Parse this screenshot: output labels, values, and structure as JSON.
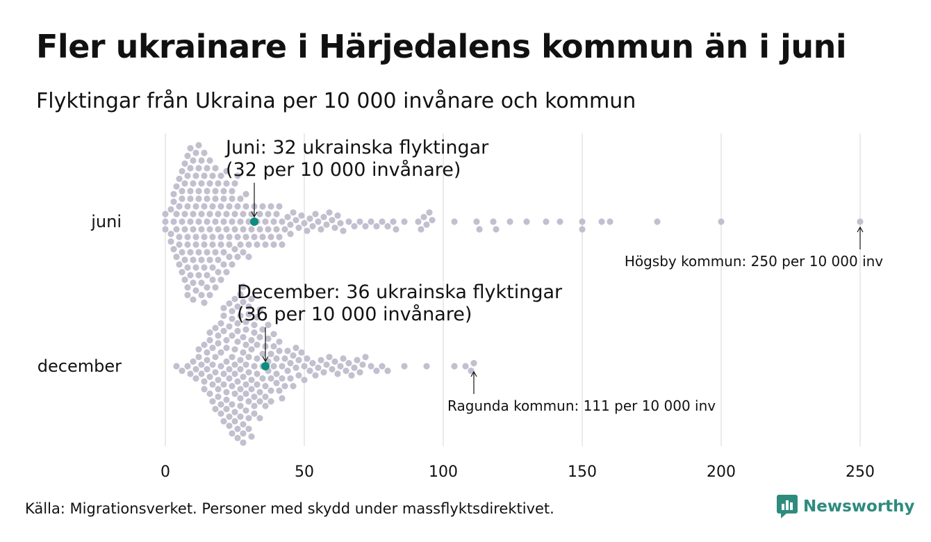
{
  "title": "Fler ukrainare i Härjedalens kommun än i juni",
  "subtitle": "Flyktingar från Ukraina per 10 000 invånare och kommun",
  "source": "Källa: Migrationsverket. Personer med skydd under massflyktsdirektivet.",
  "logo_text": "Newsworthy",
  "colors": {
    "dot": "#c2bfcf",
    "highlight": "#0e8c80",
    "grid": "#d4d4d4",
    "text": "#111111",
    "logo": "#2e8b7e"
  },
  "chart_data": {
    "type": "scatter",
    "variant": "beeswarm",
    "xlim": [
      0,
      250
    ],
    "xticks": [
      0,
      50,
      100,
      150,
      200,
      250
    ],
    "xtick_labels": [
      "0",
      "50",
      "100",
      "150",
      "200",
      "250"
    ],
    "grid": "vertical",
    "series": [
      {
        "name": "juni",
        "highlight": {
          "value": 32,
          "label_line1": "Juni: 32 ukrainska flyktingar",
          "label_line2": "(32 per 10 000 invånare)"
        },
        "outlier": {
          "value": 250,
          "label": "Högsby kommun: 250 per 10 000 inv"
        },
        "values": [
          0,
          0,
          0,
          2,
          2,
          2,
          3,
          3,
          3,
          3,
          4,
          4,
          4,
          4,
          5,
          5,
          5,
          5,
          5,
          6,
          6,
          6,
          6,
          6,
          6,
          7,
          7,
          7,
          7,
          7,
          7,
          8,
          8,
          8,
          8,
          8,
          8,
          8,
          8,
          9,
          9,
          9,
          9,
          9,
          9,
          9,
          10,
          10,
          10,
          10,
          10,
          10,
          10,
          11,
          11,
          11,
          11,
          11,
          11,
          11,
          12,
          12,
          12,
          12,
          12,
          12,
          12,
          13,
          13,
          13,
          13,
          13,
          13,
          13,
          14,
          14,
          14,
          14,
          14,
          14,
          14,
          15,
          15,
          15,
          15,
          15,
          15,
          15,
          16,
          16,
          16,
          16,
          16,
          16,
          17,
          17,
          17,
          17,
          17,
          17,
          18,
          18,
          18,
          18,
          18,
          18,
          19,
          19,
          19,
          19,
          19,
          20,
          20,
          20,
          20,
          20,
          21,
          21,
          21,
          21,
          21,
          22,
          22,
          22,
          22,
          22,
          23,
          23,
          23,
          23,
          24,
          24,
          24,
          24,
          25,
          25,
          25,
          25,
          26,
          26,
          26,
          26,
          27,
          27,
          27,
          28,
          28,
          28,
          29,
          29,
          29,
          30,
          30,
          30,
          31,
          31,
          32,
          32,
          33,
          33,
          34,
          34,
          35,
          35,
          36,
          36,
          37,
          37,
          38,
          38,
          39,
          39,
          40,
          40,
          41,
          41,
          42,
          42,
          43,
          44,
          45,
          45,
          46,
          47,
          48,
          49,
          50,
          51,
          52,
          53,
          54,
          55,
          56,
          57,
          58,
          59,
          60,
          61,
          62,
          63,
          64,
          66,
          68,
          70,
          72,
          74,
          76,
          78,
          80,
          82,
          83,
          86,
          91,
          92,
          93,
          94,
          95,
          96,
          104,
          112,
          113,
          118,
          119,
          124,
          130,
          137,
          142,
          150,
          150,
          157,
          160,
          177,
          200,
          250
        ]
      },
      {
        "name": "december",
        "highlight": {
          "value": 36,
          "label_line1": "December: 36 ukrainska flyktingar",
          "label_line2": "(36 per 10 000 invånare)"
        },
        "outlier": {
          "value": 111,
          "label": "Ragunda kommun: 111 per 10 000 inv"
        },
        "values": [
          4,
          6,
          8,
          9,
          10,
          11,
          11,
          12,
          12,
          13,
          13,
          14,
          14,
          14,
          15,
          15,
          15,
          16,
          16,
          16,
          16,
          17,
          17,
          17,
          17,
          18,
          18,
          18,
          18,
          19,
          19,
          19,
          19,
          19,
          20,
          20,
          20,
          20,
          20,
          21,
          21,
          21,
          21,
          21,
          21,
          22,
          22,
          22,
          22,
          22,
          22,
          23,
          23,
          23,
          23,
          23,
          23,
          24,
          24,
          24,
          24,
          24,
          24,
          24,
          25,
          25,
          25,
          25,
          25,
          25,
          25,
          26,
          26,
          26,
          26,
          26,
          26,
          26,
          27,
          27,
          27,
          27,
          27,
          27,
          27,
          27,
          28,
          28,
          28,
          28,
          28,
          28,
          28,
          28,
          29,
          29,
          29,
          29,
          29,
          29,
          29,
          30,
          30,
          30,
          30,
          30,
          30,
          30,
          31,
          31,
          31,
          31,
          31,
          31,
          32,
          32,
          32,
          32,
          32,
          32,
          33,
          33,
          33,
          33,
          33,
          34,
          34,
          34,
          34,
          34,
          35,
          35,
          35,
          35,
          36,
          36,
          36,
          36,
          37,
          37,
          37,
          37,
          38,
          38,
          38,
          38,
          39,
          39,
          39,
          40,
          40,
          40,
          41,
          41,
          41,
          42,
          42,
          42,
          43,
          43,
          44,
          44,
          45,
          45,
          46,
          46,
          47,
          47,
          48,
          48,
          49,
          50,
          50,
          51,
          52,
          53,
          54,
          55,
          56,
          57,
          58,
          59,
          60,
          61,
          62,
          63,
          64,
          65,
          66,
          67,
          68,
          69,
          70,
          71,
          72,
          74,
          76,
          78,
          80,
          86,
          94,
          104,
          108,
          110,
          111
        ]
      }
    ]
  }
}
